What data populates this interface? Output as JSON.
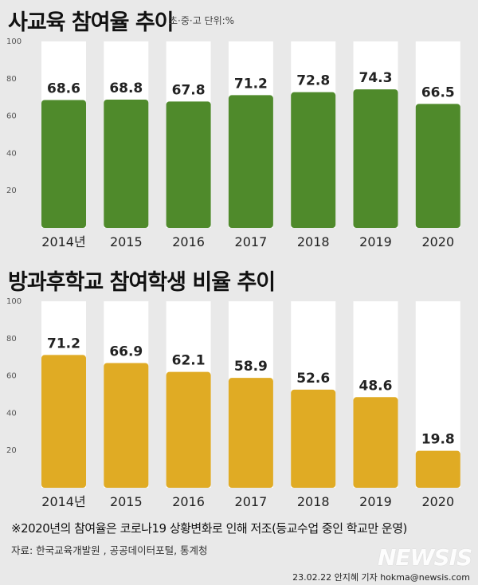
{
  "title1": "사교육 참여율 추이",
  "subtitle1": "초·중·고 단위:%",
  "title2": "방과후학교 참여학생 비율 추이",
  "note": "※2020년의 참여율은 코로나19 상황변화로 인해 저조(등교수업 중인 학교만 운영)",
  "source": "자료: 한국교육개발원 , 공공데이터포털, 통계청",
  "logo": "NEWSIS",
  "credit": "23.02.22 안지혜 기자 hokma@newsis.com",
  "colors": {
    "chart1_bar": "#4f8a2b",
    "chart2_bar": "#e0ab24",
    "background": "#e9e9e9",
    "column": "#ffffff"
  },
  "chart_data": [
    {
      "type": "bar",
      "title": "사교육 참여율 추이",
      "subtitle": "초·중·고 단위:%",
      "categories": [
        "2014년",
        "2015",
        "2016",
        "2017",
        "2018",
        "2019",
        "2020"
      ],
      "values": [
        68.6,
        68.8,
        67.8,
        71.2,
        72.8,
        74.3,
        66.5
      ],
      "value_labels": [
        "68.6",
        "68.8",
        "67.8",
        "71.2",
        "72.8",
        "74.3",
        "66.5"
      ],
      "yticks": [
        "100",
        "80",
        "60",
        "40",
        "20"
      ],
      "ylim": [
        0,
        100
      ],
      "grid": false
    },
    {
      "type": "bar",
      "title": "방과후학교 참여학생 비율 추이",
      "categories": [
        "2014년",
        "2015",
        "2016",
        "2017",
        "2018",
        "2019",
        "2020"
      ],
      "values": [
        71.2,
        66.9,
        62.1,
        58.9,
        52.6,
        48.6,
        19.8
      ],
      "value_labels": [
        "71.2",
        "66.9",
        "62.1",
        "58.9",
        "52.6",
        "48.6",
        "19.8"
      ],
      "yticks": [
        "100",
        "80",
        "60",
        "40",
        "20"
      ],
      "ylim": [
        0,
        100
      ],
      "grid": false
    }
  ]
}
